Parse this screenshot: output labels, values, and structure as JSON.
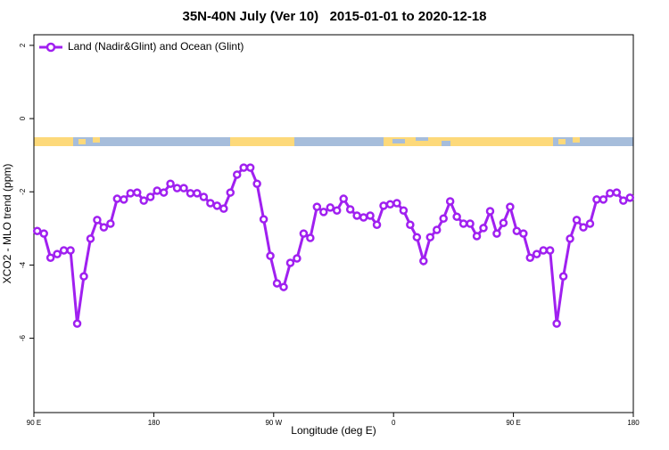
{
  "chart_data": {
    "type": "line",
    "title": "35N-40N July (Ver 10)   2015-01-01 to 2020-12-18",
    "x_label": "Longitude (deg E)",
    "y_label": "XCO2 - MLO trend (ppm)",
    "x": [
      92.5,
      97.5,
      102.5,
      107.5,
      112.5,
      117.5,
      122.5,
      127.5,
      132.5,
      137.5,
      142.5,
      147.5,
      152.5,
      157.5,
      162.5,
      167.5,
      172.5,
      177.5,
      182.5,
      187.5,
      192.5,
      197.5,
      202.5,
      207.5,
      212.5,
      217.5,
      222.5,
      227.5,
      232.5,
      237.5,
      242.5,
      247.5,
      252.5,
      257.5,
      262.5,
      267.5,
      272.5,
      277.5,
      282.5,
      287.5,
      292.5,
      297.5,
      302.5,
      307.5,
      312.5,
      317.5,
      322.5,
      327.5,
      332.5,
      337.5,
      342.5,
      347.5,
      352.5,
      357.5,
      362.5,
      367.5,
      372.5,
      377.5,
      382.5,
      387.5,
      392.5,
      397.5,
      402.5,
      407.5,
      412.5,
      417.5,
      422.5,
      427.5,
      432.5,
      437.5,
      442.5,
      447.5,
      452.5,
      457.5,
      462.5,
      467.5,
      472.5,
      477.5,
      482.5,
      487.5,
      492.5,
      497.5,
      502.5,
      507.5,
      512.5,
      517.5,
      522.5,
      527.5,
      532.5,
      537.5
    ],
    "series": [
      {
        "name": "Land (Nadir&Glint) and Ocean (Glint)",
        "color": "#a020f0",
        "values": [
          -3.07,
          -3.14,
          -3.8,
          -3.7,
          -3.6,
          -3.6,
          -5.6,
          -4.31,
          -3.28,
          -2.77,
          -2.97,
          -2.87,
          -2.19,
          -2.21,
          -2.04,
          -2.02,
          -2.24,
          -2.14,
          -1.97,
          -2.02,
          -1.78,
          -1.9,
          -1.9,
          -2.04,
          -2.04,
          -2.14,
          -2.31,
          -2.38,
          -2.46,
          -2.02,
          -1.53,
          -1.34,
          -1.34,
          -1.78,
          -2.75,
          -3.75,
          -4.5,
          -4.6,
          -3.94,
          -3.82,
          -3.14,
          -3.26,
          -2.41,
          -2.55,
          -2.43,
          -2.51,
          -2.19,
          -2.48,
          -2.65,
          -2.7,
          -2.65,
          -2.9,
          -2.38,
          -2.34,
          -2.31,
          -2.51,
          -2.9,
          -3.24,
          -3.89,
          -3.24,
          -3.04,
          -2.73,
          -2.26,
          -2.68,
          -2.87,
          -2.87,
          -3.21,
          -2.99,
          -2.53,
          -3.14,
          -2.85,
          -2.41,
          -3.07,
          -3.14,
          -3.8,
          -3.7,
          -3.6,
          -3.6,
          -5.6,
          -4.31,
          -3.28,
          -2.77,
          -2.97,
          -2.87,
          -2.21,
          -2.21,
          -2.04,
          -2.02,
          -2.24,
          -2.16
        ]
      }
    ],
    "xlim": [
      90,
      540
    ],
    "xticks": [
      {
        "value": 90,
        "label": "90 E"
      },
      180,
      {
        "value": 270,
        "label": "90 W"
      },
      {
        "value": 360,
        "label": "0"
      },
      {
        "value": 450,
        "label": "90 E"
      },
      {
        "value": 540,
        "label": "180"
      }
    ],
    "ylim": [
      -8.03,
      2.29
    ],
    "yticks": [
      2,
      0,
      -2,
      -4,
      -6
    ],
    "legend": "top-left"
  }
}
